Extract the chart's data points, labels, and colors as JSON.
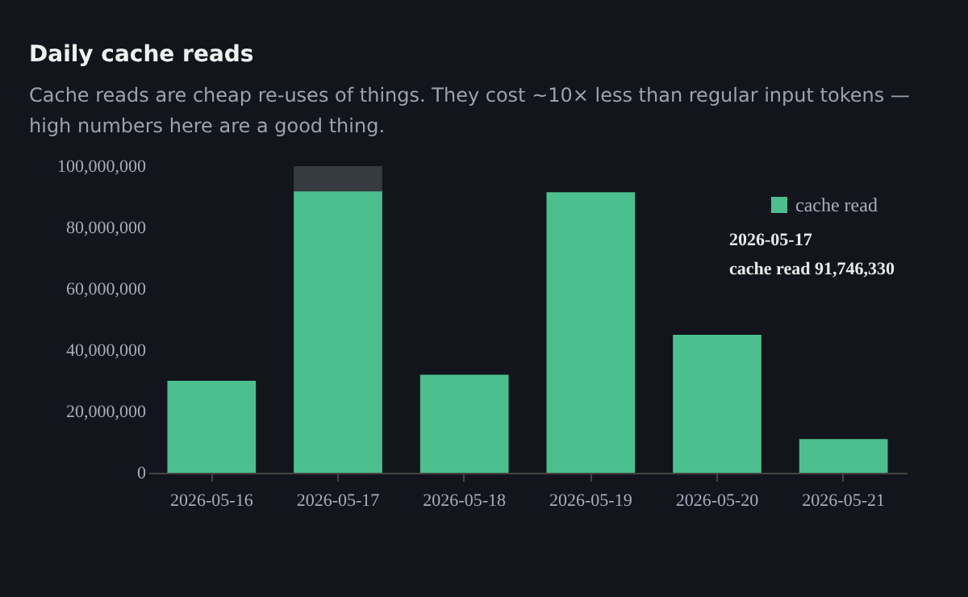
{
  "chart_data": {
    "type": "bar",
    "title": "Daily cache reads",
    "subtitle": "Cache reads are cheap re-uses of things. They cost ~10× less than regular input tokens — high numbers here are a good thing.",
    "categories": [
      "2026-05-16",
      "2026-05-17",
      "2026-05-18",
      "2026-05-19",
      "2026-05-20",
      "2026-05-21"
    ],
    "series": [
      {
        "name": "cache read",
        "color": "#4cbf8f",
        "values": [
          30000000,
          91746330,
          32000000,
          91500000,
          45000000,
          11000000
        ]
      }
    ],
    "ylim": [
      0,
      100000000
    ],
    "yticks": [
      {
        "value": 0,
        "label": "0"
      },
      {
        "value": 20000000,
        "label": "20,000,000"
      },
      {
        "value": 40000000,
        "label": "40,000,000"
      },
      {
        "value": 60000000,
        "label": "60,000,000"
      },
      {
        "value": 80000000,
        "label": "80,000,000"
      },
      {
        "value": 100000000,
        "label": "100,000,000"
      }
    ],
    "bands": [
      {
        "axis": "x",
        "from": "2026-05-17",
        "to": "2026-05-17",
        "color": "#3a3f45"
      }
    ],
    "annotations": [
      "2026-05-17\ncache read   91,746,330"
    ],
    "legend": "top right",
    "grid": false
  }
}
